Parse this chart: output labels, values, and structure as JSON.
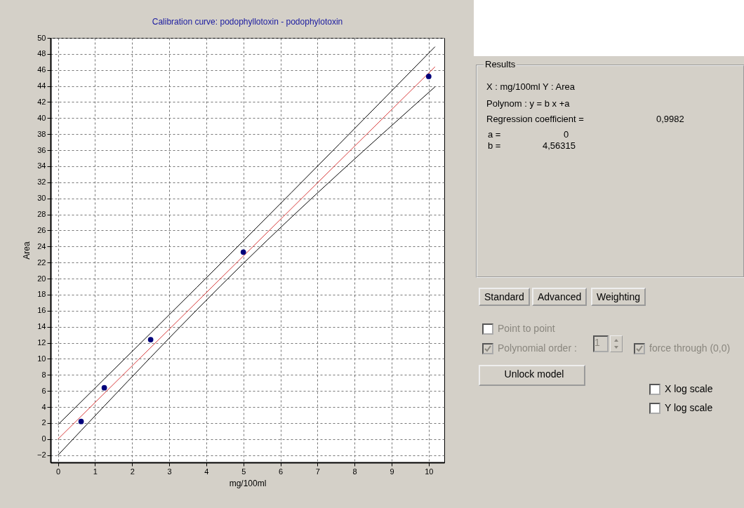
{
  "chart_data": [
    {
      "type": "scatter",
      "title": "Calibration curve: podophyllotoxin - podophylotoxin",
      "xlabel": "mg/100ml",
      "ylabel": "Area",
      "xlim": [
        -0.2,
        10.42
      ],
      "ylim": [
        -2.9,
        50
      ],
      "xticks": [
        0,
        1,
        2,
        3,
        4,
        5,
        6,
        7,
        8,
        9,
        10
      ],
      "yticks": [
        -2,
        0,
        2,
        4,
        6,
        8,
        10,
        12,
        14,
        16,
        18,
        20,
        22,
        24,
        26,
        28,
        30,
        32,
        34,
        36,
        38,
        40,
        42,
        44,
        46,
        48,
        50
      ],
      "grid": true,
      "series": [
        {
          "type": "line",
          "color": "#000000",
          "x": [
            0,
            5,
            10.17
          ],
          "values": [
            1.8,
            24.7,
            48.9
          ]
        },
        {
          "type": "line",
          "color": "#000000",
          "x": [
            0,
            5,
            10.17
          ],
          "values": [
            -2.0,
            21.9,
            43.9
          ]
        },
        {
          "type": "line",
          "color": "#d83a3a",
          "x": [
            0,
            10.17
          ],
          "values": [
            0,
            46.4
          ]
        },
        {
          "color": "#00007a",
          "x": [
            0.625,
            1.25,
            2.5,
            5,
            10
          ],
          "values": [
            2.2,
            6.4,
            12.4,
            23.3,
            45.2
          ]
        }
      ]
    },
    {
      "type": "other",
      "title": "Results",
      "annotations": [
        "X : mg/100ml    Y : Area",
        "Polynom : y = b x +a",
        "Regression coefficient =",
        "0,9982",
        "a =",
        "0",
        "b =",
        "4,56315",
        "Standard",
        "Advanced",
        "Weighting",
        "Point to point",
        "Polynomial order :",
        "1",
        "force through (0,0)",
        "Unlock model",
        "X log scale",
        "Y log scale"
      ]
    }
  ]
}
